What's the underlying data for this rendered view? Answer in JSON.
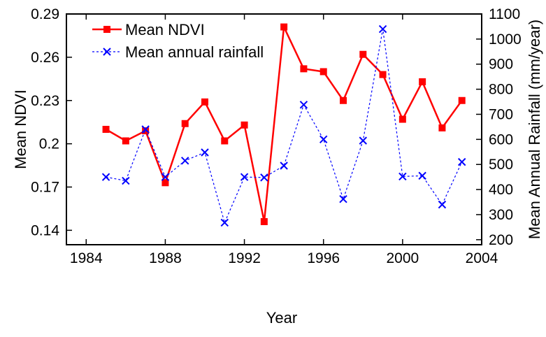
{
  "chart_data": {
    "type": "line",
    "title": "",
    "xlabel": "Year",
    "ylabel_left": "Mean NDVI",
    "ylabel_right": "Mean Annual Rainfall (mm/year)",
    "xlim": [
      1983,
      2004
    ],
    "ylim_left": [
      0.13,
      0.29
    ],
    "ylim_right": [
      180,
      1100
    ],
    "x_ticks": [
      1984,
      1988,
      1992,
      1996,
      2000,
      2004
    ],
    "y_ticks_left": [
      0.14,
      0.17,
      0.2,
      0.23,
      0.26,
      0.29
    ],
    "y_ticks_right": [
      200,
      300,
      400,
      500,
      600,
      700,
      800,
      900,
      1000,
      1100
    ],
    "y_tick_labels_left": [
      "0.14",
      "0.17",
      "0.2",
      "0.23",
      "0.26",
      "0.29"
    ],
    "grid": false,
    "legend_position": "top-left",
    "series": [
      {
        "name": "Mean NDVI",
        "axis": "left",
        "color": "#ff0000",
        "line_style": "solid",
        "marker": "square",
        "x": [
          1985,
          1986,
          1987,
          1988,
          1989,
          1990,
          1991,
          1992,
          1993,
          1994,
          1995,
          1996,
          1997,
          1998,
          1999,
          2000,
          2001,
          2002,
          2003
        ],
        "y": [
          0.21,
          0.202,
          0.209,
          0.173,
          0.214,
          0.229,
          0.202,
          0.213,
          0.146,
          0.281,
          0.252,
          0.25,
          0.23,
          0.262,
          0.248,
          0.217,
          0.243,
          0.211,
          0.23
        ]
      },
      {
        "name": "Mean annual rainfall",
        "axis": "right",
        "color": "#0000ff",
        "line_style": "dashed",
        "marker": "x",
        "x": [
          1985,
          1986,
          1987,
          1988,
          1989,
          1990,
          1991,
          1992,
          1993,
          1994,
          1995,
          1996,
          1997,
          1998,
          1999,
          2000,
          2001,
          2002,
          2003
        ],
        "y": [
          450,
          435,
          640,
          450,
          515,
          548,
          268,
          450,
          448,
          495,
          738,
          600,
          362,
          595,
          1040,
          452,
          455,
          340,
          510
        ]
      }
    ]
  }
}
